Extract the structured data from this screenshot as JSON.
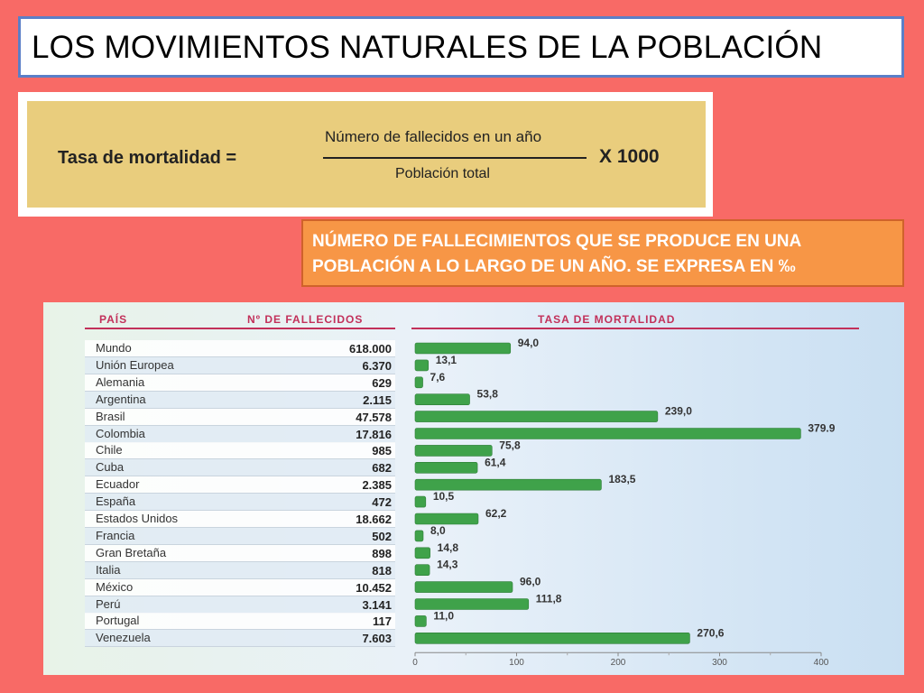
{
  "title": "LOS MOVIMIENTOS NATURALES DE LA POBLACIÓN",
  "formula": {
    "label": "Tasa de  mortalidad =",
    "numerator": "Número de fallecidos en un año",
    "denominator": "Población total",
    "multiplier": "X 1000"
  },
  "definition": "NÚMERO DE FALLECIMIENTOS QUE SE PRODUCE EN UNA POBLACIÓN A LO LARGO DE UN AÑO. SE EXPRESA EN  ‰",
  "table": {
    "col_country": "PAÍS",
    "col_deaths": "Nº DE FALLECIDOS",
    "col_rate": "TASA DE MORTALIDAD"
  },
  "chart_data": {
    "type": "bar",
    "orientation": "horizontal",
    "xlim": [
      0,
      400
    ],
    "ticks": [
      "0",
      "100",
      "200",
      "300",
      "400"
    ],
    "categories": [
      "Mundo",
      "Unión Europea",
      "Alemania",
      "Argentina",
      "Brasil",
      "Colombia",
      "Chile",
      "Cuba",
      "Ecuador",
      "España",
      "Estados Unidos",
      "Francia",
      "Gran Bretaña",
      "Italia",
      "México",
      "Perú",
      "Portugal",
      "Venezuela"
    ],
    "deaths": [
      "618.000",
      "6.370",
      "629",
      "2.115",
      "47.578",
      "17.816",
      "985",
      "682",
      "2.385",
      "472",
      "18.662",
      "502",
      "898",
      "818",
      "10.452",
      "3.141",
      "117",
      "7.603"
    ],
    "values": [
      94.0,
      13.1,
      7.6,
      53.8,
      239.0,
      379.9,
      75.8,
      61.4,
      183.5,
      10.5,
      62.2,
      8.0,
      14.8,
      14.3,
      96.0,
      111.8,
      11.0,
      270.6
    ],
    "value_labels": [
      "94,0",
      "13,1",
      "7,6",
      "53,8",
      "239,0",
      "379.9",
      "75,8",
      "61,4",
      "183,5",
      "10,5",
      "62,2",
      "8,0",
      "14,8",
      "14,3",
      "96,0",
      "111,8",
      "11,0",
      "270,6"
    ],
    "bar_color": "#3fa24a"
  }
}
